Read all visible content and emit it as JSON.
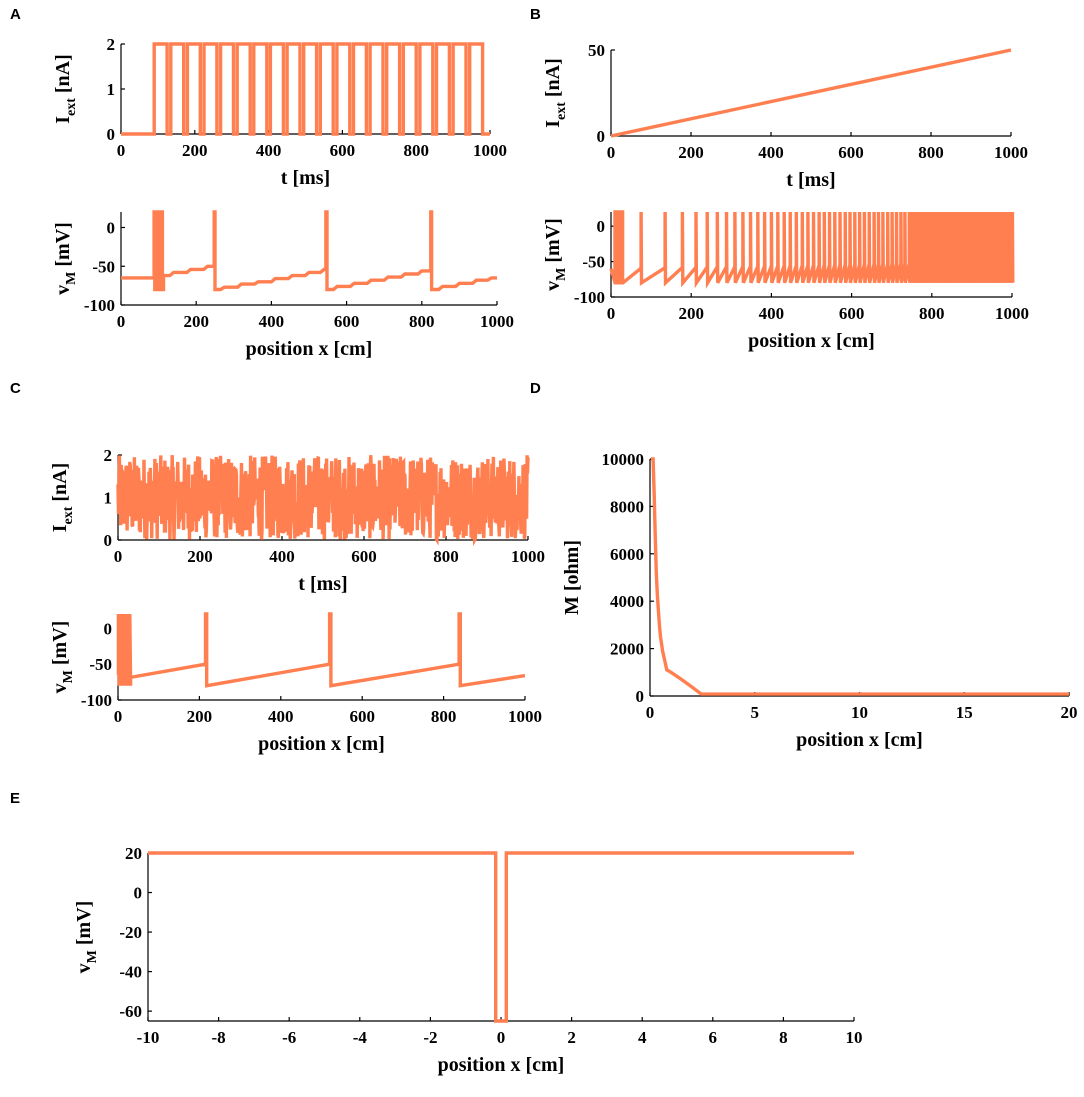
{
  "colors": {
    "series": "#FF7F50",
    "axis": "#000000"
  },
  "chart_data": [
    {
      "id": "A-top",
      "panel_label": "A",
      "type": "line",
      "ylabel": "I",
      "ylabel_sub": "ext",
      "ylabel_unit": " [nA]",
      "xlabel": "t [ms]",
      "xlim": [
        0,
        1000
      ],
      "ylim": [
        0,
        2
      ],
      "xticks": [
        0,
        200,
        400,
        600,
        800,
        1000
      ],
      "yticks": [
        0,
        1,
        2
      ],
      "series": [
        {
          "name": "I_ext",
          "generator": "pulse_train",
          "onset": 90,
          "period": 45,
          "high_duration": 35,
          "end": 980,
          "low": 0,
          "high": 2,
          "x": [
            0,
            90,
            90,
            125,
            125,
            135,
            135,
            170,
            170,
            980,
            980
          ],
          "y": [
            0,
            0,
            2,
            2,
            0,
            0,
            2,
            2,
            0,
            0,
            0
          ]
        }
      ]
    },
    {
      "id": "A-bottom",
      "type": "line",
      "ylabel": "v",
      "ylabel_sub": "M",
      "ylabel_unit": " [mV]",
      "xlabel": "position x [cm]",
      "xlim": [
        0,
        1000
      ],
      "ylim": [
        -100,
        20
      ],
      "xticks": [
        0,
        200,
        400,
        600,
        800,
        1000
      ],
      "yticks": [
        -100,
        -50,
        0
      ],
      "series": [
        {
          "name": "v_M",
          "x": [
            0,
            88,
            88,
            90,
            90,
            92,
            92,
            94,
            94,
            96,
            96,
            98,
            98,
            100,
            100,
            102,
            102,
            104,
            104,
            106,
            106,
            108,
            108,
            110,
            110,
            113,
            113,
            130,
            140,
            175,
            185,
            220,
            230,
            248,
            248,
            250,
            250,
            265,
            275,
            310,
            320,
            355,
            365,
            400,
            410,
            445,
            455,
            490,
            500,
            530,
            540,
            545,
            545,
            548,
            548,
            565,
            575,
            610,
            620,
            655,
            665,
            700,
            710,
            745,
            755,
            790,
            800,
            824,
            824,
            826,
            826,
            845,
            855,
            890,
            900,
            935,
            945,
            975,
            985,
            1000
          ],
          "y": [
            -65,
            -65,
            20,
            20,
            -80,
            -80,
            20,
            20,
            -80,
            -80,
            20,
            20,
            -80,
            -80,
            20,
            20,
            -80,
            -80,
            20,
            20,
            -80,
            -80,
            20,
            20,
            -80,
            -80,
            -62,
            -62,
            -58,
            -58,
            -54,
            -54,
            -50,
            -50,
            20,
            20,
            -80,
            -80,
            -77,
            -77,
            -73,
            -73,
            -70,
            -70,
            -66,
            -66,
            -62,
            -62,
            -58,
            -58,
            -54,
            -54,
            20,
            20,
            -80,
            -80,
            -76,
            -76,
            -72,
            -72,
            -68,
            -68,
            -64,
            -64,
            -60,
            -60,
            -56,
            -56,
            20,
            20,
            -80,
            -80,
            -76,
            -76,
            -72,
            -72,
            -68,
            -68,
            -65,
            -65
          ]
        }
      ]
    },
    {
      "id": "B-top",
      "panel_label": "B",
      "type": "line",
      "ylabel": "I",
      "ylabel_sub": "ext",
      "ylabel_unit": " [nA]",
      "xlabel": "t [ms]",
      "xlim": [
        0,
        1000
      ],
      "ylim": [
        0,
        50
      ],
      "xticks": [
        0,
        200,
        400,
        600,
        800,
        1000
      ],
      "yticks": [
        0,
        50
      ],
      "series": [
        {
          "name": "I_ext",
          "x": [
            0,
            1000
          ],
          "y": [
            0,
            50
          ]
        }
      ]
    },
    {
      "id": "B-bottom",
      "type": "line",
      "ylabel": "v",
      "ylabel_sub": "M",
      "ylabel_unit": " [mV]",
      "xlabel": "position x [cm]",
      "xlim": [
        0,
        1000
      ],
      "ylim": [
        -100,
        20
      ],
      "xticks": [
        0,
        200,
        400,
        600,
        800,
        1000
      ],
      "yticks": [
        -100,
        -50,
        0
      ],
      "series": [
        {
          "name": "v_M",
          "generator": "accelerating_spikes",
          "burst_start": 10,
          "burst_end": 30,
          "spike_times": [
            75,
            135,
            178,
            212,
            240,
            265,
            288,
            309,
            329,
            348,
            366,
            383,
            400,
            416,
            432,
            447,
            462,
            477,
            491,
            505,
            519,
            532,
            545,
            558,
            571,
            584,
            596,
            608,
            620,
            632,
            644,
            656,
            667,
            678,
            690,
            701,
            712,
            723,
            733,
            744
          ],
          "dense_from": 744,
          "dense_to": 1000,
          "dense_period": 6,
          "v_reset": -80,
          "v_peak": 20,
          "v_start": -60,
          "v_end": -50
        }
      ]
    },
    {
      "id": "C-top",
      "panel_label": "C",
      "type": "line",
      "ylabel": "I",
      "ylabel_sub": "ext",
      "ylabel_unit": " [nA]",
      "xlabel": "t [ms]",
      "xlim": [
        0,
        1000
      ],
      "ylim": [
        0,
        2
      ],
      "xticks": [
        0,
        200,
        400,
        600,
        800,
        1000
      ],
      "yticks": [
        0,
        1,
        2
      ],
      "series": [
        {
          "name": "I_ext",
          "generator": "random_noise",
          "x_range": [
            0,
            1000
          ],
          "y_range": [
            0,
            2
          ],
          "samples": 900
        }
      ]
    },
    {
      "id": "C-bottom",
      "type": "line",
      "ylabel": "v",
      "ylabel_sub": "M",
      "ylabel_unit": " [mV]",
      "xlabel": "position x [cm]",
      "xlim": [
        0,
        1000
      ],
      "ylim": [
        -100,
        20
      ],
      "xticks": [
        0,
        200,
        400,
        600,
        800,
        1000
      ],
      "yticks": [
        -100,
        -50,
        0
      ],
      "series": [
        {
          "name": "v_M",
          "x": [
            0,
            1,
            1,
            3,
            3,
            5,
            5,
            7,
            7,
            9,
            9,
            11,
            11,
            13,
            13,
            15,
            15,
            17,
            17,
            19,
            19,
            21,
            21,
            23,
            23,
            25,
            25,
            27,
            27,
            29,
            29,
            31,
            31,
            35,
            215,
            215,
            218,
            218,
            520,
            520,
            523,
            523,
            838,
            838,
            841,
            841,
            1000
          ],
          "y": [
            -65,
            -65,
            20,
            -80,
            20,
            -80,
            20,
            -80,
            20,
            -80,
            20,
            -80,
            20,
            -80,
            20,
            -80,
            20,
            -80,
            20,
            -80,
            20,
            -80,
            20,
            -80,
            20,
            -80,
            20,
            -80,
            20,
            -80,
            20,
            -80,
            -68,
            -68,
            -50,
            20,
            20,
            -80,
            -50,
            20,
            20,
            -80,
            -50,
            20,
            20,
            -80,
            -66
          ]
        }
      ]
    },
    {
      "id": "D",
      "panel_label": "D",
      "type": "line",
      "ylabel": "M [ohm]",
      "xlabel": "position x [cm]",
      "xlim": [
        0,
        20
      ],
      "ylim": [
        0,
        10000
      ],
      "xticks": [
        0,
        5,
        10,
        15,
        20
      ],
      "yticks": [
        0,
        2000,
        4000,
        6000,
        8000,
        10000
      ],
      "series": [
        {
          "name": "M",
          "x": [
            0.05,
            0.15,
            0.2,
            0.25,
            0.3,
            0.35,
            0.4,
            0.45,
            0.5,
            0.6,
            0.7,
            0.8,
            1.0,
            1.5,
            2.0,
            2.45,
            20
          ],
          "y": [
            10000,
            10000,
            8500,
            6800,
            5200,
            4300,
            3600,
            3000,
            2500,
            1900,
            1500,
            1100,
            1000,
            700,
            380,
            80,
            80
          ]
        }
      ]
    },
    {
      "id": "E",
      "panel_label": "E",
      "type": "line",
      "ylabel": "v",
      "ylabel_sub": "M",
      "ylabel_unit": " [mV]",
      "xlabel": "position x [cm]",
      "xlim": [
        -10,
        10
      ],
      "ylim": [
        -65,
        20
      ],
      "xticks": [
        -10,
        -8,
        -6,
        -4,
        -2,
        0,
        2,
        4,
        6,
        8,
        10
      ],
      "yticks": [
        -60,
        -40,
        -20,
        0,
        20
      ],
      "series": [
        {
          "name": "v_M",
          "x": [
            -10,
            -0.15,
            -0.15,
            0.15,
            0.15,
            10
          ],
          "y": [
            20,
            20,
            -65,
            -65,
            20,
            20
          ]
        }
      ]
    }
  ]
}
